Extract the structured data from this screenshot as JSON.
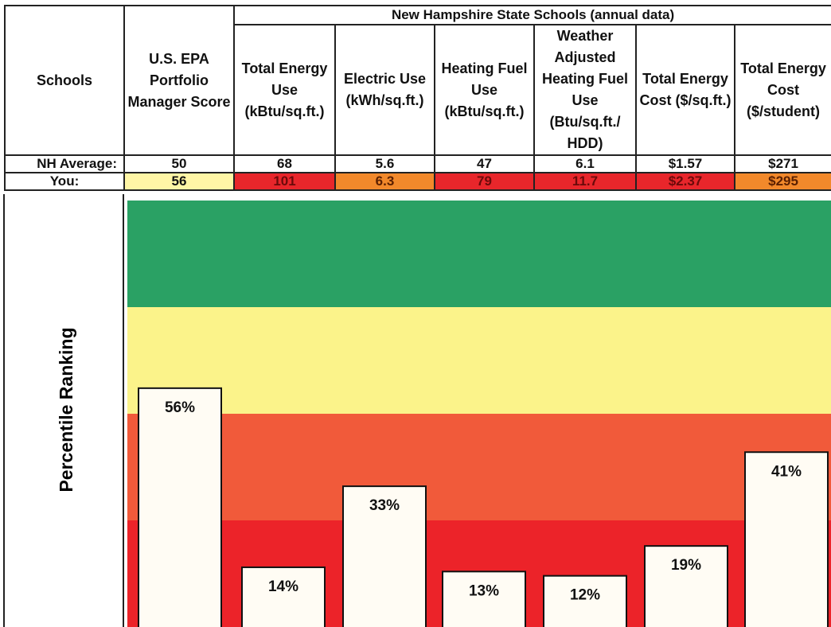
{
  "table": {
    "corner": "Schools",
    "score_header": "U.S. EPA Portfolio Manager Score",
    "group_header": "New Hampshire State Schools (annual data)",
    "columns": [
      "Total Energy Use (kBtu/sq.ft.)",
      "Electric Use (kWh/sq.ft.)",
      "Heating Fuel Use (kBtu/sq.ft.)",
      "Weather Adjusted Heating Fuel Use (Btu/sq.ft./ HDD)",
      "Total Energy Cost ($/sq.ft.)",
      "Total Energy Cost ($/student)"
    ],
    "rows": [
      [
        "NH Average:",
        "50",
        "68",
        "5.6",
        "47",
        "6.1",
        "$1.57",
        "$271"
      ],
      [
        "You:",
        "56",
        "101",
        "6.3",
        "79",
        "11.7",
        "$2.37",
        "$295"
      ]
    ],
    "you_colors": [
      "#ffffff",
      "#fff6a6",
      "#e8262b",
      "#f2892b",
      "#e8262b",
      "#e8262b",
      "#e8262b",
      "#f2892b"
    ]
  },
  "chart_data": {
    "type": "bar",
    "ylabel": "Percentile Ranking",
    "values": [
      56,
      14,
      33,
      13,
      12,
      19,
      41
    ],
    "value_labels": [
      "56%",
      "14%",
      "33%",
      "13%",
      "12%",
      "19%",
      "41%"
    ],
    "color": "#fffcf4",
    "ylim": [
      0,
      100
    ],
    "bands": [
      {
        "from": 0,
        "to": 25,
        "color": "#ec2329"
      },
      {
        "from": 25,
        "to": 50,
        "color": "#f15a3a"
      },
      {
        "from": 50,
        "to": 75,
        "color": "#fbf38a"
      },
      {
        "from": 75,
        "to": 100,
        "color": "#2aa164"
      }
    ]
  }
}
